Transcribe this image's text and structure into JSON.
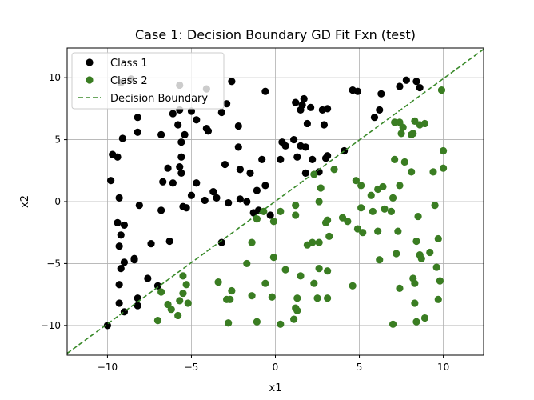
{
  "chart_data": {
    "type": "scatter",
    "title": "Case 1: Decision Boundary GD Fit Fxn (test)",
    "xlabel": "x1",
    "ylabel": "x2",
    "xlim": [
      -12.4,
      12.4
    ],
    "ylim": [
      -12.4,
      12.4
    ],
    "xticks": [
      -10,
      -5,
      0,
      5,
      10
    ],
    "yticks": [
      -10,
      -5,
      0,
      5,
      10
    ],
    "grid": true,
    "legend_position": "top-left",
    "series": [
      {
        "name": "Class 1",
        "kind": "points",
        "color": "#000000",
        "points": [
          [
            -9.2,
            9.6
          ],
          [
            -8.6,
            9.9
          ],
          [
            -5.7,
            9.4
          ],
          [
            -4.1,
            9.1
          ],
          [
            -2.6,
            9.7
          ],
          [
            -0.6,
            8.9
          ],
          [
            -8.2,
            6.8
          ],
          [
            -9.1,
            5.1
          ],
          [
            -8.2,
            5.6
          ],
          [
            -6.1,
            7.1
          ],
          [
            -5.7,
            7.4
          ],
          [
            -5.0,
            7.3
          ],
          [
            -2.9,
            7.9
          ],
          [
            -3.2,
            7.2
          ],
          [
            -6.8,
            5.4
          ],
          [
            -5.8,
            6.2
          ],
          [
            -4.7,
            6.6
          ],
          [
            -4.0,
            5.7
          ],
          [
            -4.1,
            5.9
          ],
          [
            -2.2,
            6.1
          ],
          [
            -2.2,
            4.4
          ],
          [
            -5.4,
            5.4
          ],
          [
            -5.6,
            4.8
          ],
          [
            -5.6,
            3.6
          ],
          [
            -9.7,
            3.8
          ],
          [
            -9.4,
            3.6
          ],
          [
            -6.4,
            2.7
          ],
          [
            -5.7,
            2.8
          ],
          [
            -5.6,
            2.3
          ],
          [
            -6.1,
            1.5
          ],
          [
            -6.7,
            1.6
          ],
          [
            -4.7,
            1.5
          ],
          [
            -3.0,
            3.0
          ],
          [
            -2.1,
            2.6
          ],
          [
            -1.5,
            2.3
          ],
          [
            -0.8,
            3.4
          ],
          [
            0.3,
            3.4
          ],
          [
            0.4,
            4.8
          ],
          [
            0.6,
            4.5
          ],
          [
            1.1,
            5.0
          ],
          [
            1.5,
            4.5
          ],
          [
            1.8,
            4.4
          ],
          [
            2.2,
            3.4
          ],
          [
            2.6,
            2.4
          ],
          [
            1.8,
            2.3
          ],
          [
            1.3,
            3.6
          ],
          [
            3.1,
            3.7
          ],
          [
            3.0,
            3.5
          ],
          [
            4.1,
            4.1
          ],
          [
            1.2,
            8.0
          ],
          [
            1.5,
            7.4
          ],
          [
            1.6,
            7.8
          ],
          [
            1.7,
            8.3
          ],
          [
            2.1,
            7.6
          ],
          [
            2.8,
            7.4
          ],
          [
            3.1,
            7.5
          ],
          [
            2.9,
            6.2
          ],
          [
            1.9,
            6.3
          ],
          [
            4.6,
            9.0
          ],
          [
            4.9,
            8.9
          ],
          [
            5.9,
            6.8
          ],
          [
            6.2,
            7.4
          ],
          [
            6.3,
            8.7
          ],
          [
            7.4,
            9.3
          ],
          [
            7.8,
            9.8
          ],
          [
            8.4,
            9.7
          ],
          [
            8.6,
            9.2
          ],
          [
            -9.8,
            1.7
          ],
          [
            -9.3,
            0.3
          ],
          [
            -8.1,
            -0.3
          ],
          [
            -5.5,
            -0.4
          ],
          [
            -5.0,
            0.5
          ],
          [
            -4.2,
            0.1
          ],
          [
            -3.7,
            0.8
          ],
          [
            -3.5,
            0.3
          ],
          [
            -2.8,
            -0.1
          ],
          [
            -1.7,
            0.0
          ],
          [
            -1.1,
            0.9
          ],
          [
            -0.6,
            1.3
          ],
          [
            -2.1,
            0.2
          ],
          [
            -5.3,
            -0.5
          ],
          [
            -6.8,
            -0.7
          ],
          [
            -1.3,
            -0.9
          ],
          [
            -0.3,
            -1.1
          ],
          [
            -9.4,
            -1.7
          ],
          [
            -9.0,
            -1.9
          ],
          [
            -9.2,
            -2.7
          ],
          [
            -9.3,
            -3.6
          ],
          [
            -7.4,
            -3.4
          ],
          [
            -6.3,
            -3.2
          ],
          [
            -3.2,
            -3.3
          ],
          [
            -9.0,
            -4.9
          ],
          [
            -8.4,
            -4.6
          ],
          [
            -8.4,
            -4.7
          ],
          [
            -9.2,
            -5.4
          ],
          [
            -9.3,
            -6.7
          ],
          [
            -7.6,
            -6.2
          ],
          [
            -7.0,
            -6.8
          ],
          [
            -8.2,
            -7.8
          ],
          [
            -9.3,
            -8.2
          ],
          [
            -9.0,
            -8.9
          ],
          [
            -8.2,
            -8.4
          ],
          [
            -10.0,
            -10.0
          ],
          [
            -1.0,
            -0.7
          ]
        ]
      },
      {
        "name": "Class 2",
        "kind": "points",
        "color": "#3a7d22",
        "points": [
          [
            9.9,
            9.0
          ],
          [
            7.1,
            6.4
          ],
          [
            7.4,
            6.4
          ],
          [
            7.6,
            6.0
          ],
          [
            7.5,
            5.5
          ],
          [
            8.1,
            5.4
          ],
          [
            8.3,
            6.5
          ],
          [
            8.6,
            6.2
          ],
          [
            8.9,
            6.3
          ],
          [
            8.2,
            5.5
          ],
          [
            10.0,
            4.1
          ],
          [
            7.1,
            3.4
          ],
          [
            7.7,
            3.2
          ],
          [
            8.1,
            2.4
          ],
          [
            9.4,
            2.4
          ],
          [
            10.0,
            2.7
          ],
          [
            6.1,
            1.0
          ],
          [
            6.4,
            1.2
          ],
          [
            7.0,
            0.3
          ],
          [
            7.4,
            1.3
          ],
          [
            4.8,
            1.7
          ],
          [
            5.1,
            1.3
          ],
          [
            5.7,
            0.5
          ],
          [
            5.1,
            -0.5
          ],
          [
            5.8,
            -0.8
          ],
          [
            6.5,
            -0.6
          ],
          [
            6.9,
            -0.8
          ],
          [
            8.5,
            -1.2
          ],
          [
            9.5,
            -0.3
          ],
          [
            3.5,
            2.6
          ],
          [
            2.3,
            2.2
          ],
          [
            2.7,
            1.1
          ],
          [
            2.6,
            0.0
          ],
          [
            1.2,
            -0.3
          ],
          [
            0.3,
            -0.8
          ],
          [
            -0.7,
            -0.8
          ],
          [
            -1.1,
            -1.4
          ],
          [
            -0.1,
            -1.6
          ],
          [
            1.2,
            -1.1
          ],
          [
            3.0,
            -1.7
          ],
          [
            3.1,
            -1.5
          ],
          [
            4.0,
            -1.3
          ],
          [
            4.3,
            -1.6
          ],
          [
            4.9,
            -2.2
          ],
          [
            5.2,
            -2.5
          ],
          [
            6.1,
            -2.4
          ],
          [
            7.3,
            -2.4
          ],
          [
            -1.4,
            -3.3
          ],
          [
            1.9,
            -3.5
          ],
          [
            2.2,
            -3.3
          ],
          [
            2.6,
            -3.3
          ],
          [
            3.2,
            -2.8
          ],
          [
            6.2,
            -4.7
          ],
          [
            7.2,
            -4.2
          ],
          [
            8.4,
            -3.2
          ],
          [
            8.6,
            -4.3
          ],
          [
            8.7,
            -4.6
          ],
          [
            9.7,
            -3.0
          ],
          [
            9.2,
            -4.1
          ],
          [
            -0.6,
            -6.6
          ],
          [
            -0.1,
            -4.5
          ],
          [
            0.6,
            -5.5
          ],
          [
            1.5,
            -6.0
          ],
          [
            2.6,
            -5.4
          ],
          [
            3.1,
            -5.6
          ],
          [
            2.3,
            -6.6
          ],
          [
            -0.2,
            -7.7
          ],
          [
            1.3,
            -7.8
          ],
          [
            1.2,
            -8.6
          ],
          [
            1.3,
            -8.8
          ],
          [
            2.5,
            -7.8
          ],
          [
            3.1,
            -7.8
          ],
          [
            4.6,
            -6.8
          ],
          [
            -1.7,
            -5.0
          ],
          [
            -3.4,
            -6.5
          ],
          [
            -2.6,
            -7.2
          ],
          [
            -2.7,
            -7.9
          ],
          [
            -2.9,
            -7.9
          ],
          [
            -2.8,
            -9.8
          ],
          [
            -1.1,
            -9.7
          ],
          [
            0.3,
            -9.9
          ],
          [
            1.1,
            -9.5
          ],
          [
            -1.4,
            -7.6
          ],
          [
            -5.5,
            -6.0
          ],
          [
            -5.3,
            -6.7
          ],
          [
            -5.5,
            -7.4
          ],
          [
            -5.2,
            -8.2
          ],
          [
            -5.7,
            -8.0
          ],
          [
            -6.4,
            -8.3
          ],
          [
            -6.2,
            -8.7
          ],
          [
            -6.8,
            -7.3
          ],
          [
            -7.0,
            -9.6
          ],
          [
            -5.8,
            -9.2
          ],
          [
            7.0,
            -9.9
          ],
          [
            7.4,
            -7.0
          ],
          [
            8.2,
            -6.2
          ],
          [
            8.3,
            -6.6
          ],
          [
            8.3,
            -8.2
          ],
          [
            8.4,
            -9.7
          ],
          [
            8.9,
            -9.4
          ],
          [
            9.8,
            -6.4
          ],
          [
            9.6,
            -5.3
          ],
          [
            9.7,
            -7.9
          ]
        ]
      },
      {
        "name": "Decision Boundary",
        "kind": "line",
        "color": "#3a8a2a",
        "style": "dashed",
        "points": [
          [
            -12.4,
            -12.25
          ],
          [
            12.4,
            12.3
          ]
        ]
      }
    ]
  }
}
